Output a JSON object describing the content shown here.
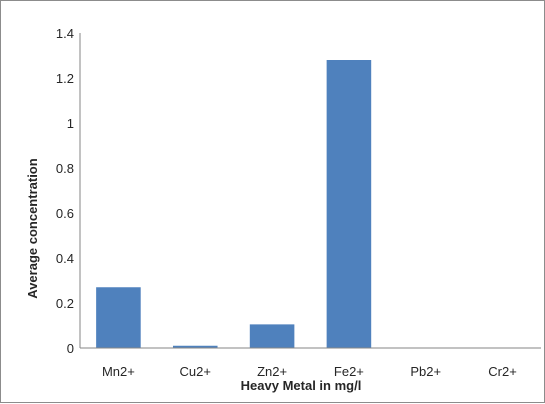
{
  "chart_data": {
    "type": "bar",
    "categories": [
      "Mn2+",
      "Cu2+",
      "Zn2+",
      "Fe2+",
      "Pb2+",
      "Cr2+"
    ],
    "values": [
      0.27,
      0.01,
      0.105,
      1.28,
      0,
      0
    ],
    "xlabel": "Heavy Metal in mg/l",
    "ylabel": "Average concentration",
    "ylim": [
      0,
      1.4
    ],
    "yticks": [
      "0",
      "0.2",
      "0.4",
      "0.6",
      "0.8",
      "1",
      "1.2",
      "1.4"
    ],
    "grid": false,
    "legend": "none",
    "bar_color": "#4f81bd"
  }
}
